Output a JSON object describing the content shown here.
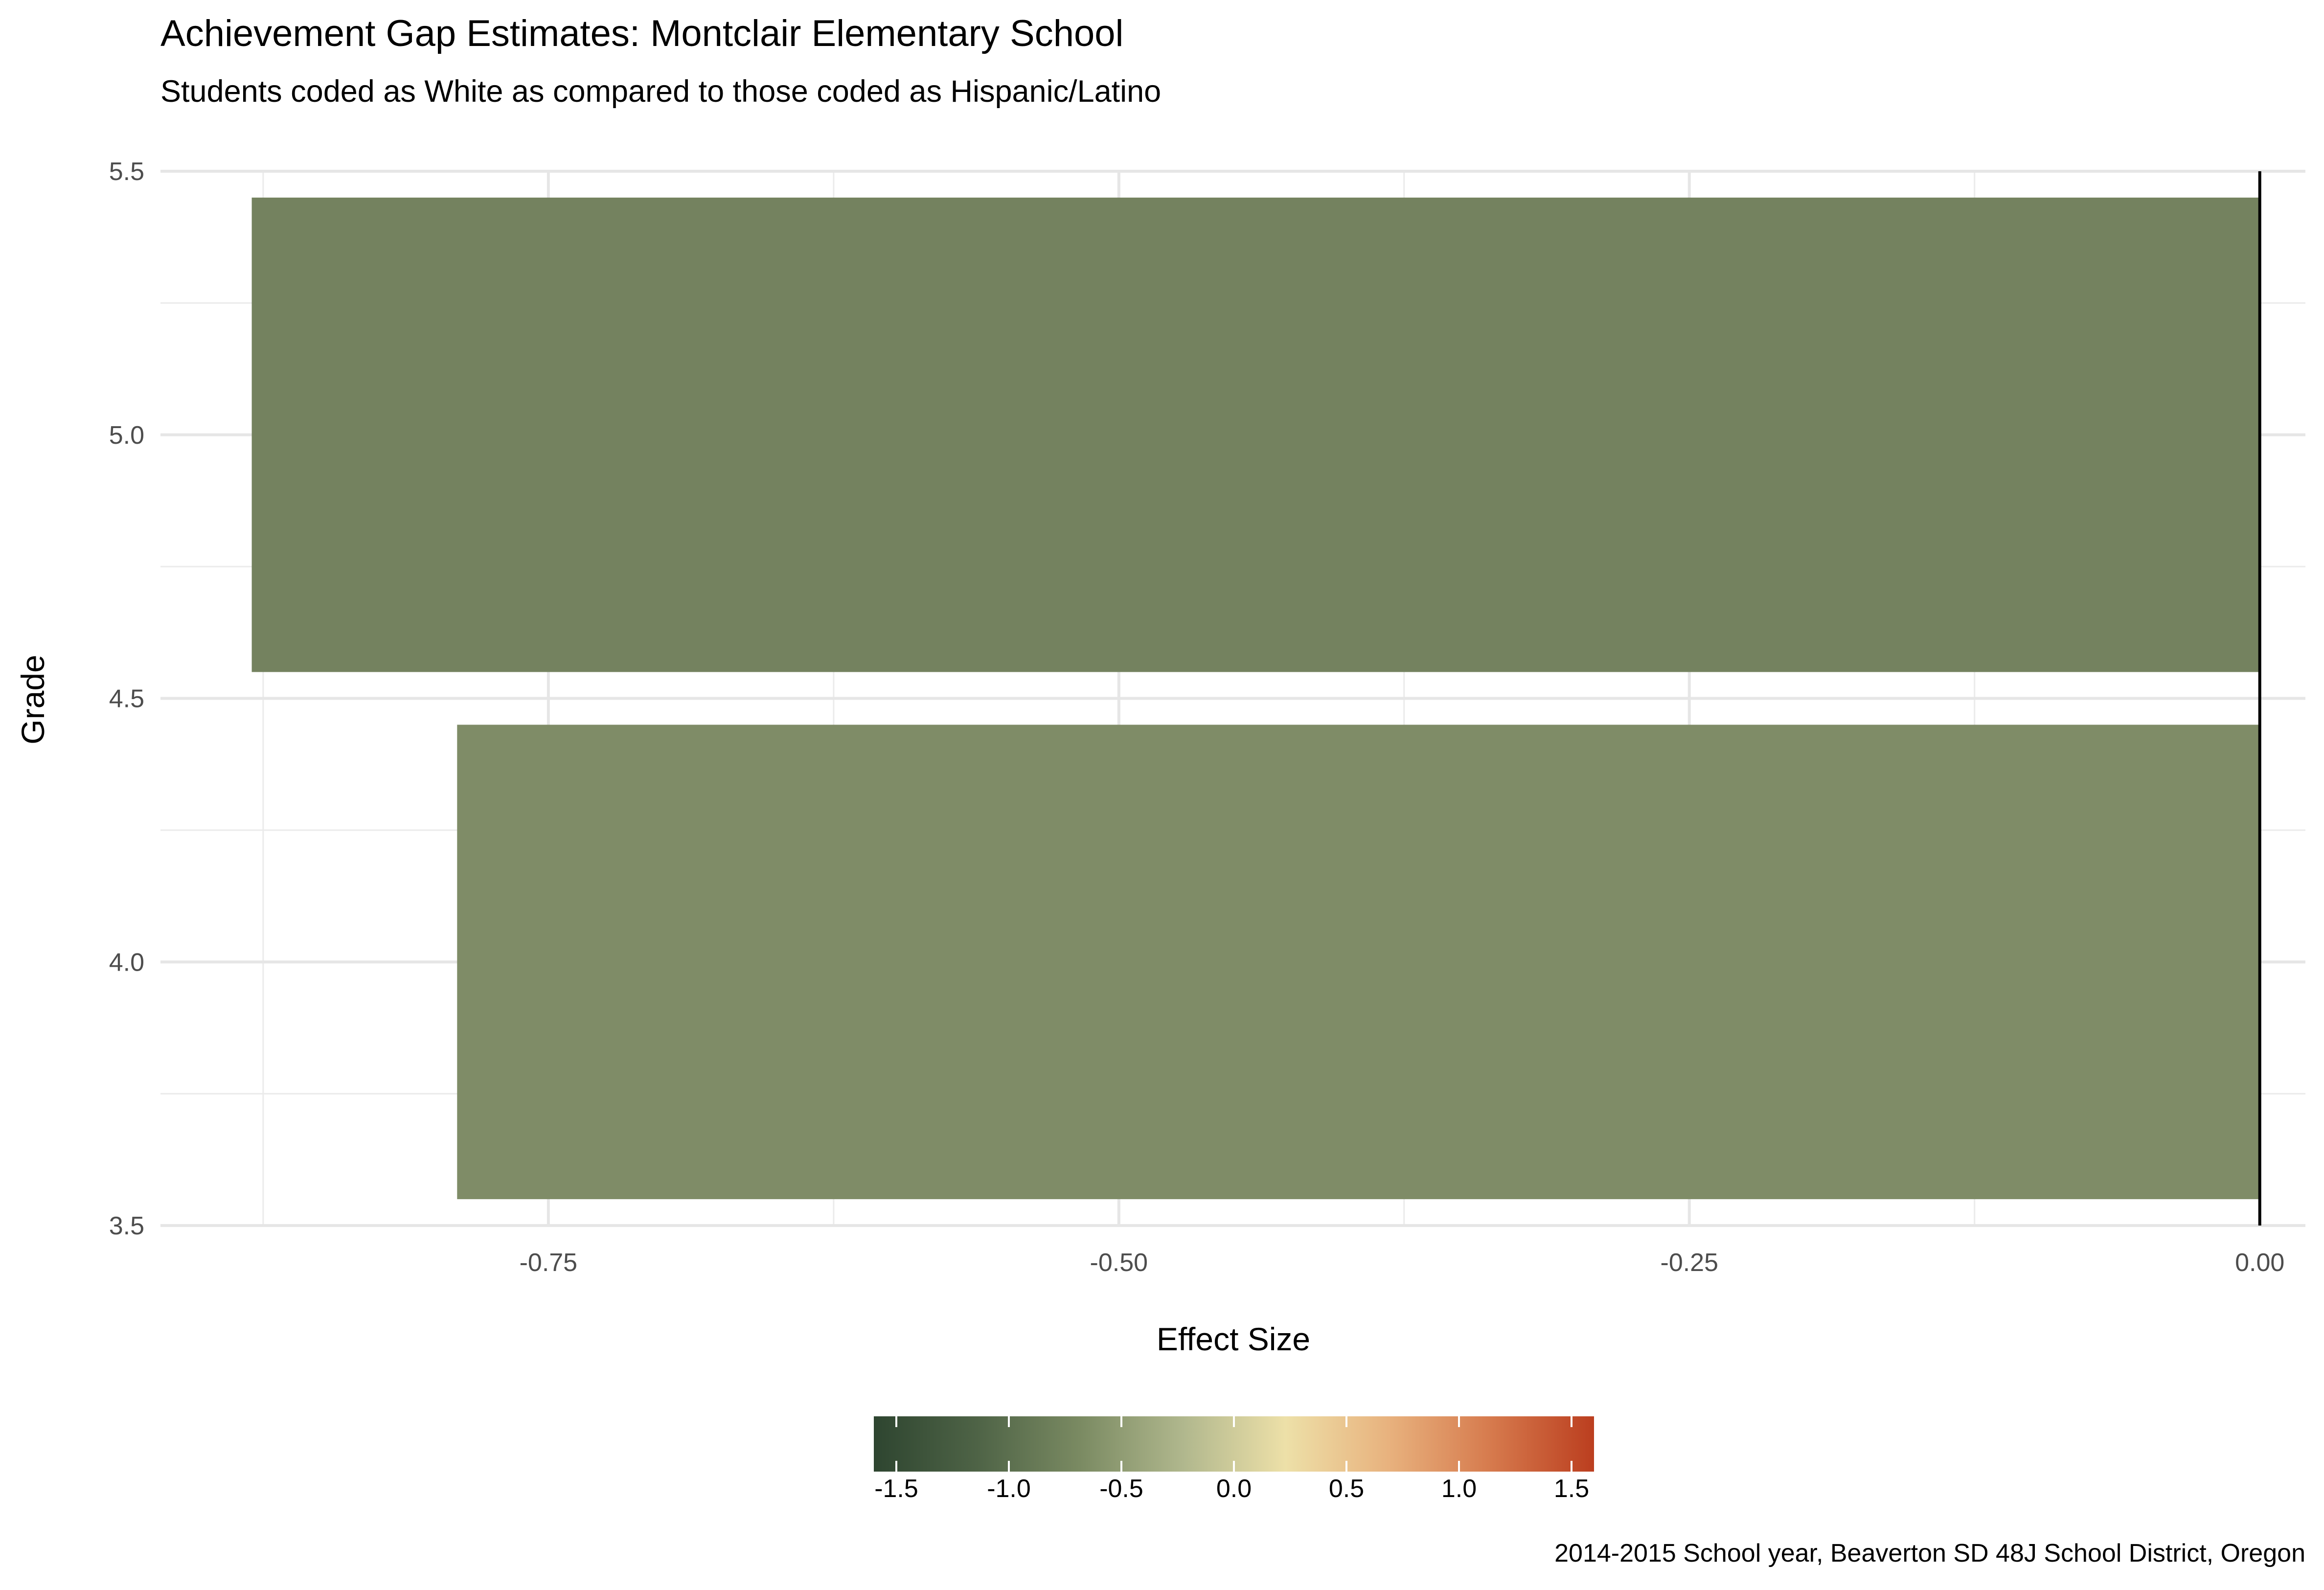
{
  "chart_data": {
    "type": "bar",
    "orientation": "horizontal",
    "title": "Achievement Gap Estimates: Montclair Elementary School",
    "subtitle": "Students coded as White as compared to those coded as Hispanic/Latino",
    "xlabel": "Effect Size",
    "ylabel": "Grade",
    "caption": "2014-2015 School year, Beaverton SD 48J School District, Oregon",
    "categories": [
      5,
      4
    ],
    "values": [
      -0.88,
      -0.79
    ],
    "bar_colors": [
      "#74825f",
      "#7f8c67"
    ],
    "xlim": [
      -0.92,
      0.02
    ],
    "ylim": [
      3.5,
      5.5
    ],
    "x_ticks": [
      -0.75,
      -0.5,
      -0.25,
      0.0
    ],
    "x_tick_labels": [
      "-0.75",
      "-0.50",
      "-0.25",
      "0.00"
    ],
    "y_ticks": [
      3.5,
      4.0,
      4.5,
      5.0,
      5.5
    ],
    "y_tick_labels": [
      "3.5",
      "4.0",
      "4.5",
      "5.0",
      "5.5"
    ],
    "reference_line": 0,
    "grid": true,
    "legend": {
      "type": "colorbar",
      "placement": "bottom",
      "range": [
        -1.6,
        1.6
      ],
      "ticks": [
        -1.5,
        -1.0,
        -0.5,
        0.0,
        0.5,
        1.0,
        1.5
      ],
      "tick_labels": [
        "-1.5",
        "-1.0",
        "-0.5",
        "0.0",
        "0.5",
        "1.0",
        "1.5"
      ],
      "colors": [
        "#2e4530",
        "#4e6346",
        "#7a8a62",
        "#b0b78d",
        "#ede0a8",
        "#e8b27e",
        "#d67a4d",
        "#bb3e1f"
      ]
    }
  }
}
